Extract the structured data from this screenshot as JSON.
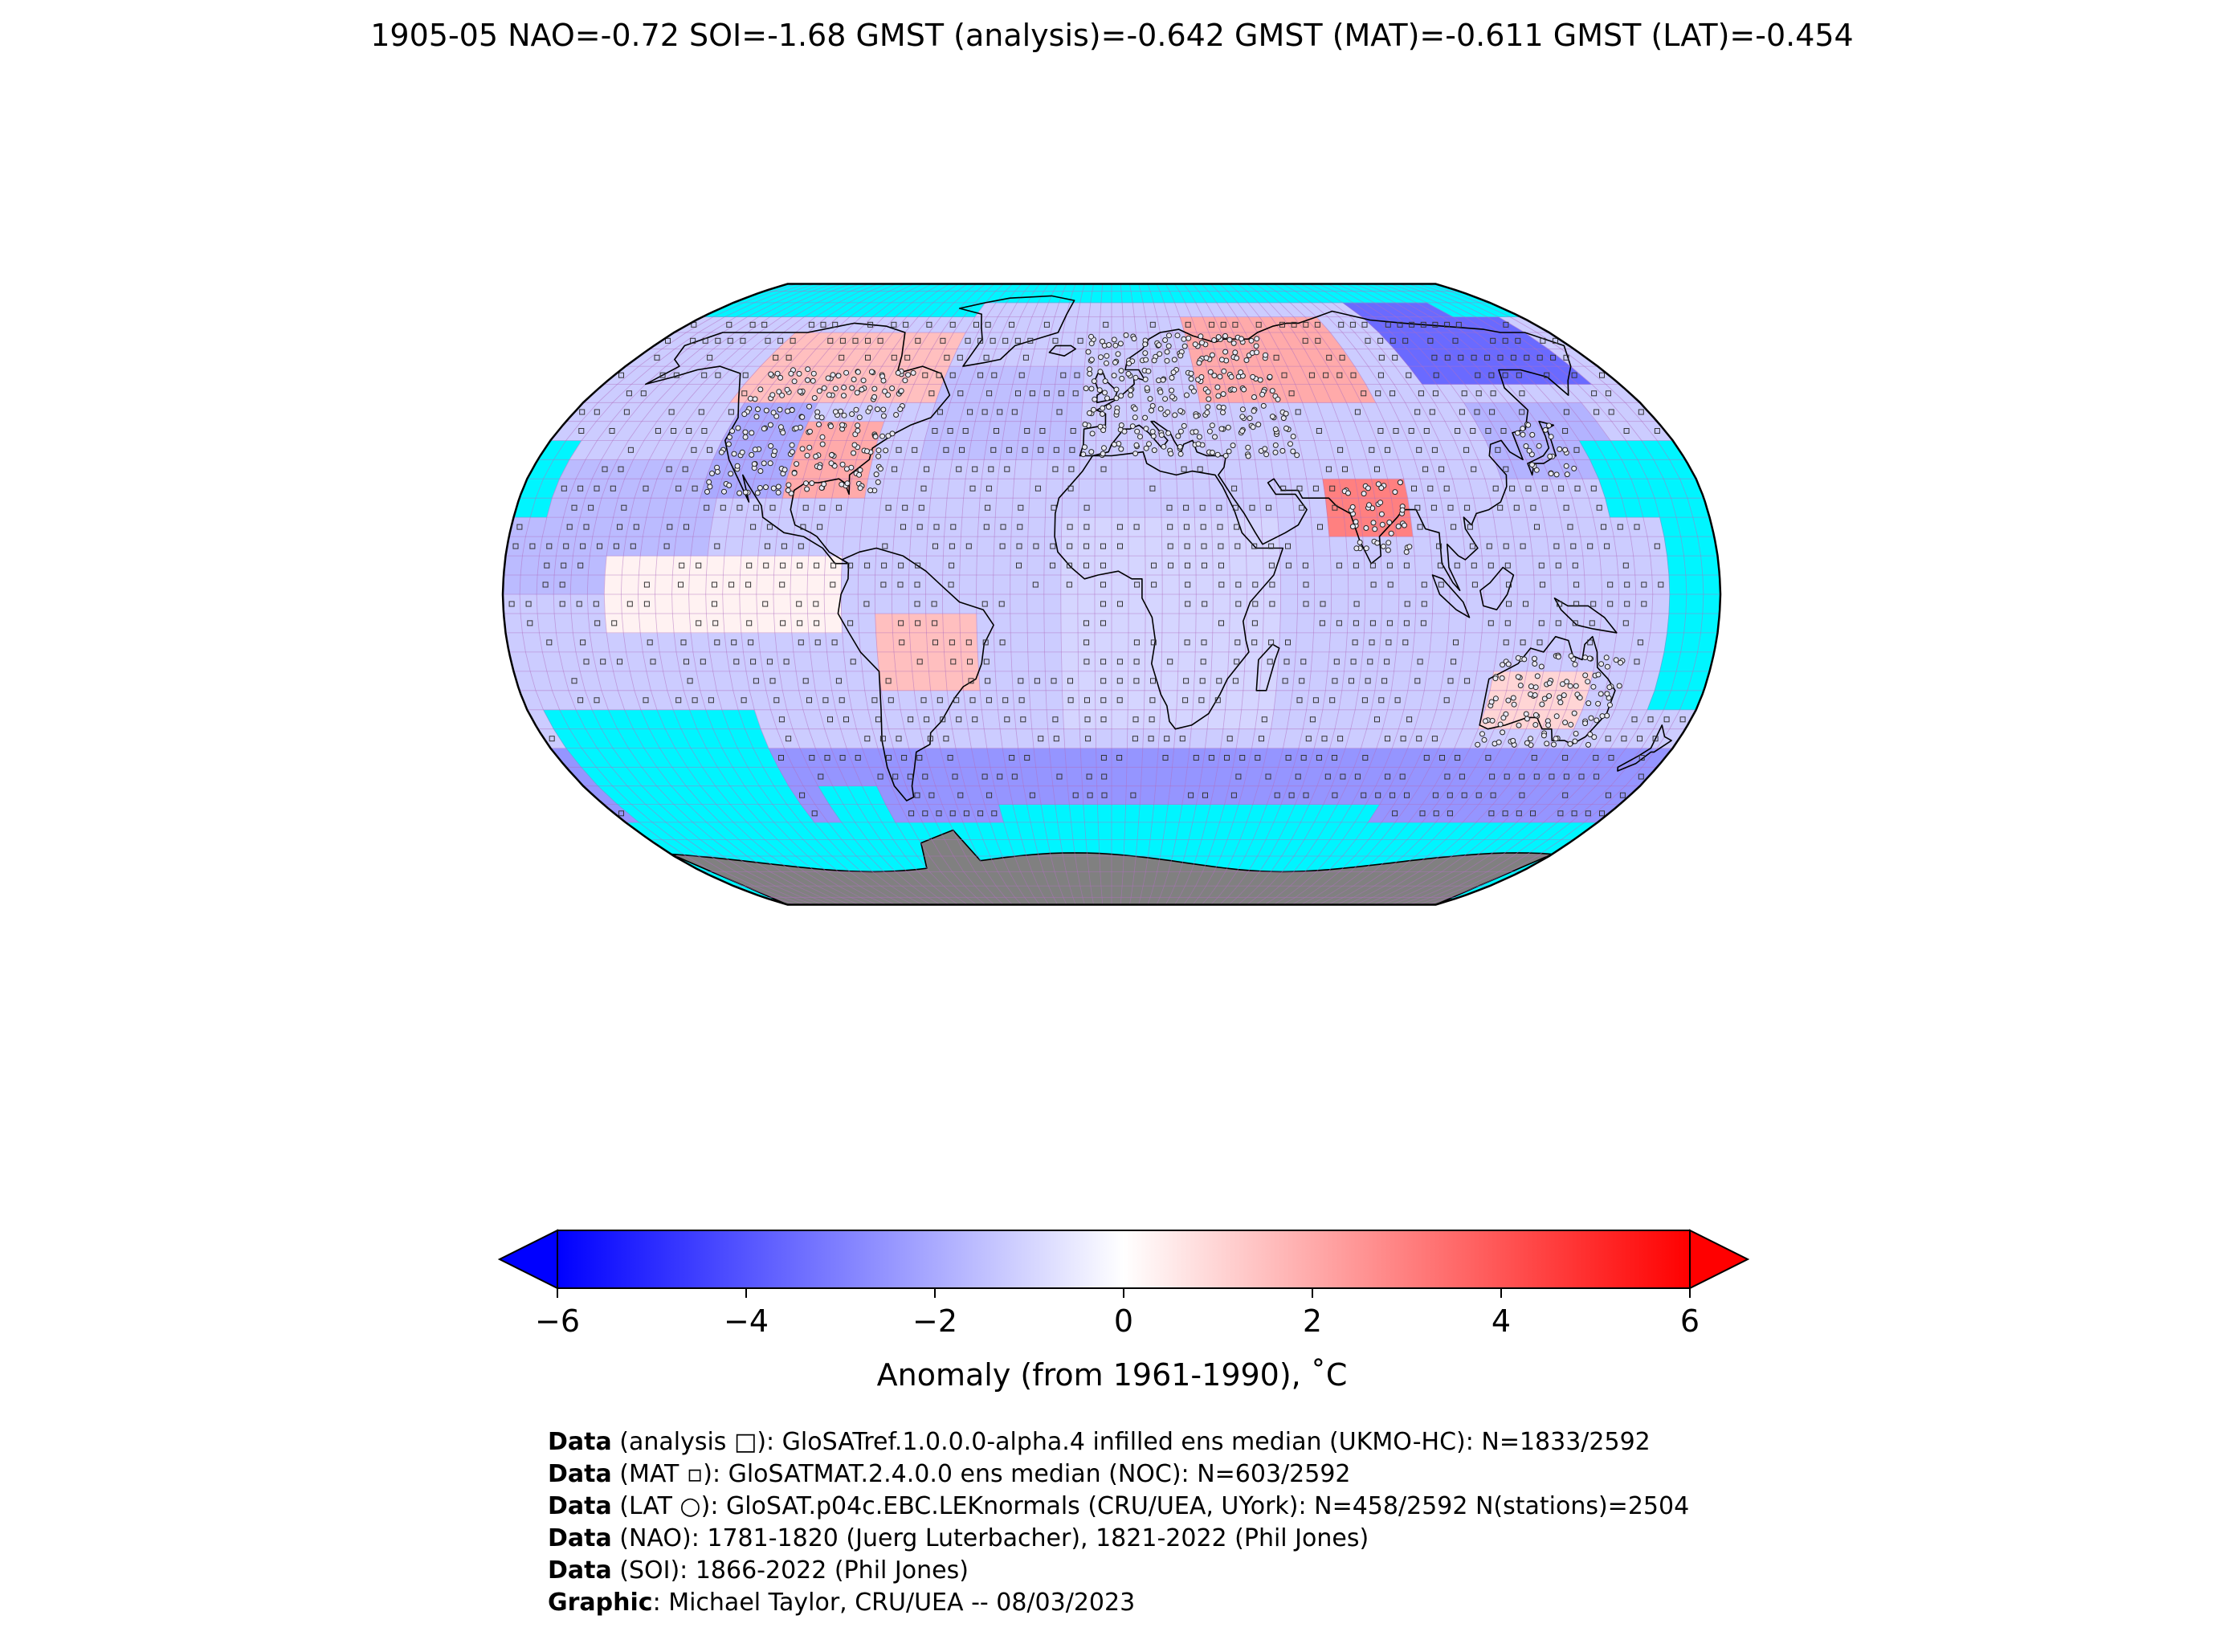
{
  "title": "1905-05 NAO=-0.72 SOI=-1.68 GMST (analysis)=-0.642 GMST (MAT)=-0.611 GMST (LAT)=-0.454",
  "map": {
    "projection": "Robinson",
    "no_data_color": "#00f5ff",
    "antarctica_color": "#808080",
    "grid_color": "#b06fbf",
    "colormap": [
      "#0000ff",
      "#ffffff",
      "#ff0000"
    ],
    "anomaly_regions": [
      {
        "region": "North America central/east",
        "anomaly": 2.0
      },
      {
        "region": "North America west",
        "anomaly": -2.0
      },
      {
        "region": "Canada",
        "anomaly": 1.5
      },
      {
        "region": "Russia / Siberia",
        "anomaly": 2.0
      },
      {
        "region": "East Siberia",
        "anomaly": -3.5
      },
      {
        "region": "India",
        "anomaly": 3.0
      },
      {
        "region": "South America interior",
        "anomaly": 1.5
      },
      {
        "region": "Central Australia",
        "anomaly": 1.0
      },
      {
        "region": "Southern Ocean",
        "anomaly": -2.5
      },
      {
        "region": "North Atlantic",
        "anomaly": -1.5
      },
      {
        "region": "Africa",
        "anomaly": -1.0
      }
    ]
  },
  "colorbar": {
    "ticks": [
      "−6",
      "−4",
      "−2",
      "0",
      "2",
      "4",
      "6"
    ],
    "tick_values": [
      -6,
      -4,
      -2,
      0,
      2,
      4,
      6
    ],
    "min": -6,
    "max": 6,
    "label": "Anomaly (from 1961-1990), ˚C"
  },
  "credits": [
    {
      "bold": "Data",
      "text": " (analysis □): GloSATref.1.0.0.0-alpha.4 infilled ens median (UKMO-HC): N=1833/2592"
    },
    {
      "bold": "Data",
      "text": " (MAT ▫): GloSATMAT.2.4.0.0 ens median (NOC): N=603/2592"
    },
    {
      "bold": "Data",
      "text": " (LAT ○): GloSAT.p04c.EBC.LEKnormals (CRU/UEA, UYork): N=458/2592 N(stations)=2504"
    },
    {
      "bold": "Data",
      "text": " (NAO): 1781-1820 (Juerg Luterbacher), 1821-2022 (Phil Jones)"
    },
    {
      "bold": "Data",
      "text": " (SOI): 1866-2022 (Phil Jones)"
    },
    {
      "bold": "Graphic",
      "text": ": Michael Taylor, CRU/UEA -- 08/03/2023"
    }
  ]
}
